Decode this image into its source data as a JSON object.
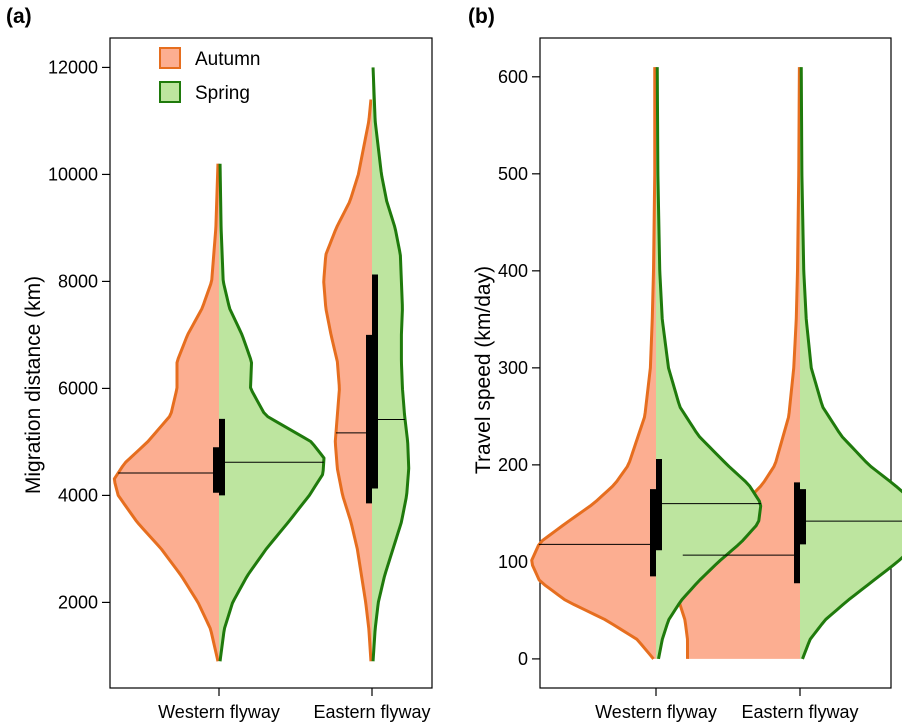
{
  "chart_data": [
    {
      "type": "violin",
      "panel_label": "(a)",
      "ylabel": "Migration distance (km)",
      "xlabel": "",
      "categories": [
        "Western flyway",
        "Eastern flyway"
      ],
      "y_ticks": [
        2000,
        4000,
        6000,
        8000,
        10000,
        12000
      ],
      "ylim": [
        400,
        12550
      ],
      "grid": false,
      "legend": {
        "position": "top-left",
        "entries": [
          {
            "label": "Autumn",
            "fill": "#fcae91",
            "stroke": "#e66e1f"
          },
          {
            "label": "Spring",
            "fill": "#bde59f",
            "stroke": "#1f7a0c"
          }
        ]
      },
      "series": [
        {
          "name": "Autumn",
          "side": "left",
          "fill": "#fcae91",
          "stroke": "#e66e1f",
          "groups": [
            {
              "category": "Western flyway",
              "range": [
                900,
                10200
              ],
              "median": 4420,
              "iqr": [
                4050,
                4900
              ],
              "profile": [
                [
                  900,
                  0.01
                ],
                [
                  1500,
                  0.08
                ],
                [
                  2000,
                  0.2
                ],
                [
                  2500,
                  0.36
                ],
                [
                  3000,
                  0.55
                ],
                [
                  3500,
                  0.78
                ],
                [
                  4000,
                  0.96
                ],
                [
                  4300,
                  1.0
                ],
                [
                  4600,
                  0.9
                ],
                [
                  5000,
                  0.68
                ],
                [
                  5500,
                  0.46
                ],
                [
                  6000,
                  0.4
                ],
                [
                  6500,
                  0.4
                ],
                [
                  7000,
                  0.3
                ],
                [
                  7500,
                  0.16
                ],
                [
                  8000,
                  0.07
                ],
                [
                  9000,
                  0.03
                ],
                [
                  10200,
                  0.01
                ]
              ]
            },
            {
              "category": "Eastern flyway",
              "range": [
                900,
                11400
              ],
              "median": 5170,
              "iqr": [
                3850,
                7000
              ],
              "profile": [
                [
                  900,
                  0.01
                ],
                [
                  1500,
                  0.03
                ],
                [
                  2000,
                  0.06
                ],
                [
                  2500,
                  0.1
                ],
                [
                  3000,
                  0.14
                ],
                [
                  3500,
                  0.2
                ],
                [
                  4000,
                  0.28
                ],
                [
                  4500,
                  0.33
                ],
                [
                  5000,
                  0.35
                ],
                [
                  5500,
                  0.33
                ],
                [
                  6000,
                  0.31
                ],
                [
                  6500,
                  0.33
                ],
                [
                  7000,
                  0.39
                ],
                [
                  7500,
                  0.44
                ],
                [
                  8000,
                  0.46
                ],
                [
                  8500,
                  0.44
                ],
                [
                  9000,
                  0.34
                ],
                [
                  9500,
                  0.21
                ],
                [
                  10000,
                  0.13
                ],
                [
                  11000,
                  0.03
                ],
                [
                  11400,
                  0.01
                ]
              ]
            }
          ]
        },
        {
          "name": "Spring",
          "side": "right",
          "fill": "#bde59f",
          "stroke": "#1f7a0c",
          "groups": [
            {
              "category": "Western flyway",
              "range": [
                900,
                10200
              ],
              "median": 4620,
              "iqr": [
                4000,
                5430
              ],
              "profile": [
                [
                  900,
                  0.01
                ],
                [
                  1500,
                  0.05
                ],
                [
                  2000,
                  0.13
                ],
                [
                  2500,
                  0.27
                ],
                [
                  3000,
                  0.45
                ],
                [
                  3500,
                  0.66
                ],
                [
                  4000,
                  0.86
                ],
                [
                  4400,
                  0.99
                ],
                [
                  4700,
                  1.0
                ],
                [
                  5000,
                  0.88
                ],
                [
                  5500,
                  0.44
                ],
                [
                  6000,
                  0.3
                ],
                [
                  6500,
                  0.31
                ],
                [
                  7000,
                  0.22
                ],
                [
                  7500,
                  0.1
                ],
                [
                  8000,
                  0.04
                ],
                [
                  9000,
                  0.02
                ],
                [
                  10200,
                  0.01
                ]
              ]
            },
            {
              "category": "Eastern flyway",
              "range": [
                900,
                12000
              ],
              "median": 5420,
              "iqr": [
                4130,
                8130
              ],
              "profile": [
                [
                  900,
                  0.01
                ],
                [
                  1500,
                  0.03
                ],
                [
                  2000,
                  0.06
                ],
                [
                  2500,
                  0.12
                ],
                [
                  3000,
                  0.2
                ],
                [
                  3500,
                  0.28
                ],
                [
                  4000,
                  0.33
                ],
                [
                  4500,
                  0.35
                ],
                [
                  5000,
                  0.34
                ],
                [
                  5500,
                  0.31
                ],
                [
                  6000,
                  0.29
                ],
                [
                  6500,
                  0.28
                ],
                [
                  7000,
                  0.28
                ],
                [
                  7500,
                  0.29
                ],
                [
                  8000,
                  0.28
                ],
                [
                  8500,
                  0.27
                ],
                [
                  9000,
                  0.22
                ],
                [
                  9500,
                  0.14
                ],
                [
                  10000,
                  0.09
                ],
                [
                  11000,
                  0.03
                ],
                [
                  12000,
                  0.01
                ]
              ]
            }
          ]
        }
      ]
    },
    {
      "type": "violin",
      "panel_label": "(b)",
      "ylabel": "Travel speed (km/day)",
      "xlabel": "",
      "categories": [
        "Western flyway",
        "Eastern flyway"
      ],
      "y_ticks": [
        0,
        100,
        200,
        300,
        400,
        500,
        600
      ],
      "ylim": [
        -30,
        640
      ],
      "grid": false,
      "series": [
        {
          "name": "Autumn",
          "side": "left",
          "fill": "#fcae91",
          "stroke": "#e66e1f",
          "groups": [
            {
              "category": "Western flyway",
              "range": [
                0,
                610
              ],
              "median": 118,
              "iqr": [
                85,
                175
              ],
              "profile": [
                [
                  0,
                  0.02
                ],
                [
                  20,
                  0.15
                ],
                [
                  40,
                  0.4
                ],
                [
                  60,
                  0.72
                ],
                [
                  80,
                  0.93
                ],
                [
                  100,
                  1.0
                ],
                [
                  120,
                  0.93
                ],
                [
                  140,
                  0.72
                ],
                [
                  160,
                  0.5
                ],
                [
                  180,
                  0.33
                ],
                [
                  200,
                  0.22
                ],
                [
                  250,
                  0.09
                ],
                [
                  300,
                  0.045
                ],
                [
                  350,
                  0.03
                ],
                [
                  400,
                  0.02
                ],
                [
                  500,
                  0.01
                ],
                [
                  610,
                  0.01
                ]
              ]
            },
            {
              "category": "Eastern flyway",
              "range": [
                0,
                610
              ],
              "median": 107,
              "iqr": [
                78,
                182
              ],
              "profile": [
                [
                  0,
                  0.9
                ],
                [
                  20,
                  0.9
                ],
                [
                  40,
                  0.92
                ],
                [
                  60,
                  0.97
                ],
                [
                  80,
                  1.0
                ],
                [
                  100,
                  0.98
                ],
                [
                  120,
                  0.86
                ],
                [
                  140,
                  0.65
                ],
                [
                  160,
                  0.45
                ],
                [
                  180,
                  0.3
                ],
                [
                  200,
                  0.2
                ],
                [
                  250,
                  0.09
                ],
                [
                  300,
                  0.05
                ],
                [
                  350,
                  0.03
                ],
                [
                  400,
                  0.02
                ],
                [
                  500,
                  0.01
                ],
                [
                  610,
                  0.005
                ]
              ]
            }
          ]
        },
        {
          "name": "Spring",
          "side": "right",
          "fill": "#bde59f",
          "stroke": "#1f7a0c",
          "groups": [
            {
              "category": "Western flyway",
              "range": [
                0,
                610
              ],
              "median": 160,
              "iqr": [
                112,
                206
              ],
              "profile": [
                [
                  0,
                  0.02
                ],
                [
                  20,
                  0.05
                ],
                [
                  40,
                  0.1
                ],
                [
                  60,
                  0.2
                ],
                [
                  80,
                  0.34
                ],
                [
                  100,
                  0.5
                ],
                [
                  120,
                  0.68
                ],
                [
                  140,
                  0.82
                ],
                [
                  160,
                  0.84
                ],
                [
                  180,
                  0.74
                ],
                [
                  200,
                  0.57
                ],
                [
                  230,
                  0.34
                ],
                [
                  260,
                  0.19
                ],
                [
                  300,
                  0.1
                ],
                [
                  350,
                  0.05
                ],
                [
                  400,
                  0.03
                ],
                [
                  500,
                  0.015
                ],
                [
                  610,
                  0.01
                ]
              ]
            },
            {
              "category": "Eastern flyway",
              "range": [
                0,
                610
              ],
              "median": 142,
              "iqr": [
                118,
                175
              ],
              "profile": [
                [
                  0,
                  0.02
                ],
                [
                  20,
                  0.08
                ],
                [
                  40,
                  0.2
                ],
                [
                  60,
                  0.38
                ],
                [
                  80,
                  0.58
                ],
                [
                  100,
                  0.78
                ],
                [
                  120,
                  0.95
                ],
                [
                  140,
                  1.0
                ],
                [
                  160,
                  0.93
                ],
                [
                  180,
                  0.75
                ],
                [
                  200,
                  0.55
                ],
                [
                  230,
                  0.33
                ],
                [
                  260,
                  0.18
                ],
                [
                  300,
                  0.09
                ],
                [
                  350,
                  0.05
                ],
                [
                  400,
                  0.03
                ],
                [
                  500,
                  0.015
                ],
                [
                  610,
                  0.01
                ]
              ]
            }
          ]
        }
      ]
    }
  ]
}
